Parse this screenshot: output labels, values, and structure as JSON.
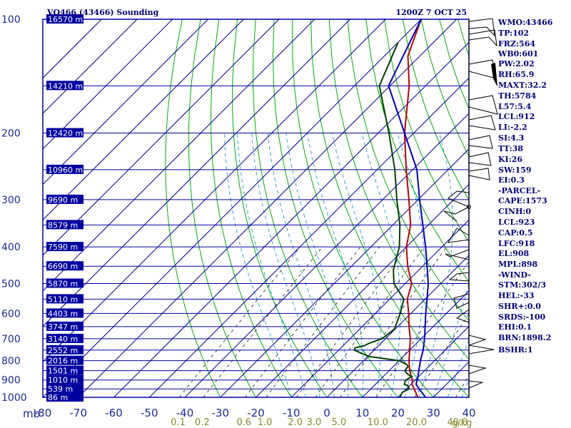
{
  "header": {
    "station": "VQ466 (43466) Sounding",
    "time": "1200Z  7 OCT 25"
  },
  "colors": {
    "grid": "#0000a0",
    "isotherm": "#0000a0",
    "dry_adiabat": "#00b000",
    "moist_adiabat": "#30a0e0",
    "mixing_ratio": "#404040",
    "temperature": "#c00000",
    "dewpoint": "#004000",
    "parcel": "#0000c0"
  },
  "chart_data": {
    "type": "line",
    "title": "VQ466 (43466) Sounding",
    "diagram": "skew-T log-P",
    "pressure_range_mb": [
      1000,
      100
    ],
    "pressure_ticks": [
      {
        "label": "100",
        "p": 100
      },
      {
        "label": "200",
        "p": 200
      },
      {
        "label": "300",
        "p": 300
      },
      {
        "label": "400",
        "p": 400
      },
      {
        "label": "500",
        "p": 500
      },
      {
        "label": "600",
        "p": 600
      },
      {
        "label": "700",
        "p": 700
      },
      {
        "label": "800",
        "p": 800
      },
      {
        "label": "900",
        "p": 900
      },
      {
        "label": "1000",
        "p": 1000
      }
    ],
    "height_labels": [
      {
        "label": "16570 m",
        "p": 100
      },
      {
        "label": "14210 m",
        "p": 150
      },
      {
        "label": "12420 m",
        "p": 200
      },
      {
        "label": "10960 m",
        "p": 250
      },
      {
        "label": "9690 m",
        "p": 300
      },
      {
        "label": "8579 m",
        "p": 350
      },
      {
        "label": "7590 m",
        "p": 400
      },
      {
        "label": "6690 m",
        "p": 450
      },
      {
        "label": "5870 m",
        "p": 500
      },
      {
        "label": "5110 m",
        "p": 550
      },
      {
        "label": "4403 m",
        "p": 600
      },
      {
        "label": "3747 m",
        "p": 650
      },
      {
        "label": "3140 m",
        "p": 700
      },
      {
        "label": "2552 m",
        "p": 750
      },
      {
        "label": "2016 m",
        "p": 800
      },
      {
        "label": "1501 m",
        "p": 850
      },
      {
        "label": "1010 m",
        "p": 900
      },
      {
        "label": "539 m",
        "p": 950
      },
      {
        "label": "86 m",
        "p": 1000
      }
    ],
    "xlabel": "mb",
    "temperature_axis_c": [
      -80,
      40
    ],
    "temperature_ticks": [
      "-80",
      "-70",
      "-60",
      "-50",
      "-40",
      "-30",
      "-20",
      "-10",
      "0",
      "10",
      "20",
      "30",
      "40"
    ],
    "mixing_ratio_labels": [
      {
        "label": "0.1",
        "w": 0.1
      },
      {
        "label": "0.2",
        "w": 0.2
      },
      {
        "label": "0.6",
        "w": 0.6
      },
      {
        "label": "1.0",
        "w": 1.0
      },
      {
        "label": "2.0",
        "w": 2.0
      },
      {
        "label": "3.0",
        "w": 3.0
      },
      {
        "label": "5.0",
        "w": 5.0
      },
      {
        "label": "10.0",
        "w": 10.0
      },
      {
        "label": "20.0",
        "w": 20.0
      },
      {
        "label": "40.0",
        "w": 40.0
      }
    ],
    "mixing_ratio_unit": "g/kg",
    "series": [
      {
        "name": "temperature",
        "color": "#c00000",
        "points": [
          [
            1000,
            25.6
          ],
          [
            950,
            22.2
          ],
          [
            925,
            20.4
          ],
          [
            900,
            19.2
          ],
          [
            850,
            15.8
          ],
          [
            800,
            12.8
          ],
          [
            750,
            10.0
          ],
          [
            700,
            7.0
          ],
          [
            650,
            3.2
          ],
          [
            600,
            -0.6
          ],
          [
            550,
            -5.0
          ],
          [
            500,
            -8.2
          ],
          [
            450,
            -14.2
          ],
          [
            400,
            -20.0
          ],
          [
            350,
            -25.0
          ],
          [
            300,
            -32.6
          ],
          [
            250,
            -41.8
          ],
          [
            200,
            -52.6
          ],
          [
            150,
            -64.6
          ],
          [
            125,
            -73.4
          ],
          [
            100,
            -80.0
          ]
        ]
      },
      {
        "name": "dewpoint",
        "color": "#004000",
        "points": [
          [
            1000,
            20.6
          ],
          [
            970,
            19.8
          ],
          [
            950,
            20.8
          ],
          [
            930,
            19.4
          ],
          [
            925,
            18.2
          ],
          [
            910,
            17.6
          ],
          [
            900,
            17.4
          ],
          [
            880,
            18.0
          ],
          [
            870,
            16.4
          ],
          [
            850,
            14.4
          ],
          [
            830,
            14.2
          ],
          [
            820,
            13.4
          ],
          [
            800,
            10.0
          ],
          [
            780,
            0.4
          ],
          [
            760,
            -3.6
          ],
          [
            750,
            -5.6
          ],
          [
            740,
            -6.0
          ],
          [
            730,
            -4.0
          ],
          [
            720,
            -3.4
          ],
          [
            700,
            -1.0
          ],
          [
            660,
            -0.2
          ],
          [
            600,
            -3.0
          ],
          [
            550,
            -6.0
          ],
          [
            500,
            -13.2
          ],
          [
            460,
            -17.2
          ],
          [
            400,
            -22.0
          ],
          [
            350,
            -28.0
          ],
          [
            300,
            -36.0
          ],
          [
            250,
            -45.0
          ],
          [
            200,
            -57.0
          ],
          [
            150,
            -73.0
          ],
          [
            115,
            -80.0
          ]
        ]
      },
      {
        "name": "parcel",
        "color": "#0000c0",
        "points": [
          [
            1000,
            27.8
          ],
          [
            950,
            23.6
          ],
          [
            923,
            21.4
          ],
          [
            900,
            20.6
          ],
          [
            850,
            18.4
          ],
          [
            800,
            16.0
          ],
          [
            750,
            13.8
          ],
          [
            700,
            11.0
          ],
          [
            600,
            4.2
          ],
          [
            500,
            -3.5
          ],
          [
            400,
            -14.6
          ],
          [
            300,
            -29.6
          ],
          [
            250,
            -38.8
          ],
          [
            200,
            -52.6
          ],
          [
            150,
            -70.4
          ],
          [
            100,
            -80.0
          ]
        ]
      }
    ]
  },
  "indices": {
    "wmo": "WMO:43466",
    "tp": "TP:102",
    "frz": "FRZ:564",
    "wb0": "WB0:601",
    "pw": "PW:2.02",
    "rh": "RH:65.9",
    "maxt": "MAXT:32.2",
    "th": "TH:5784",
    "l57": "L57:5.4",
    "lcl": "LCL:912",
    "li": "LI:-2.2",
    "si": "SI:4.3",
    "tt": "TT:38",
    "ki": "KI:26",
    "sw": "SW:159",
    "ei": "EI:0.3"
  },
  "parcel_indices": {
    "heading": "-PARCEL-",
    "cape": "CAPE:1573",
    "cinh": "CINH:0",
    "lcl": "LCL:923",
    "cap": "CAP:0.5",
    "lfc": "LFC:918",
    "el": "EL:908",
    "mpl": "MPL:898"
  },
  "wind_indices": {
    "heading": "-WIND-",
    "stm": "STM:302/3",
    "hel": "HEL:-33",
    "shr": "SHR+:0.0",
    "srds": "SRDS:-100",
    "ehi": "EHI:0.1",
    "brn": "BRN:1898.2",
    "bshr": "BSHR:1"
  }
}
